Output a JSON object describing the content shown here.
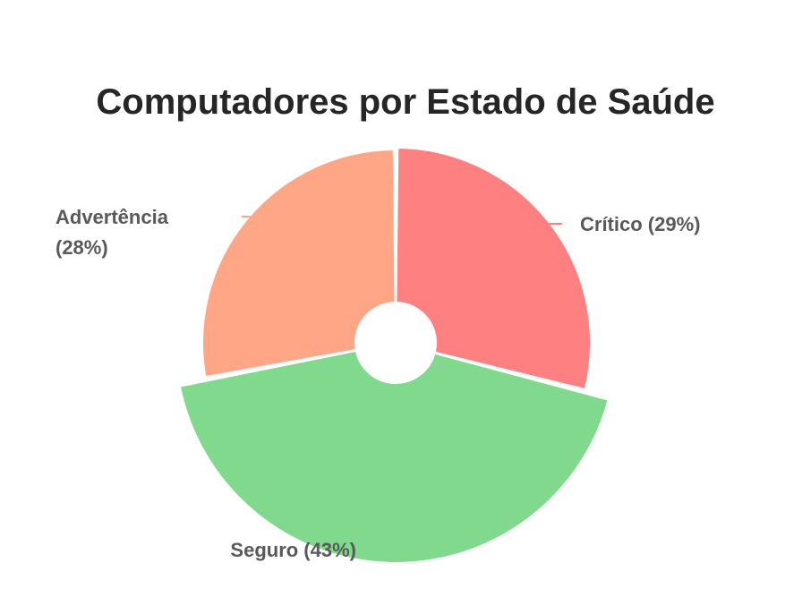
{
  "chart_data": {
    "type": "pie",
    "style": "donut-rose",
    "title": "Computadores por Estado de Saúde",
    "slices": [
      {
        "label": "Crítico",
        "value": 29,
        "color": "#ff8080"
      },
      {
        "label": "Seguro",
        "value": 43,
        "color": "#80d98c"
      },
      {
        "label": "Advertência",
        "value": 28,
        "color": "#ffa687"
      }
    ],
    "label_lines": [
      [
        "Crítico (29%)"
      ],
      [
        "Seguro (43%)"
      ],
      [
        "Advertência",
        "(28%)"
      ]
    ],
    "label_color": "#595959"
  }
}
